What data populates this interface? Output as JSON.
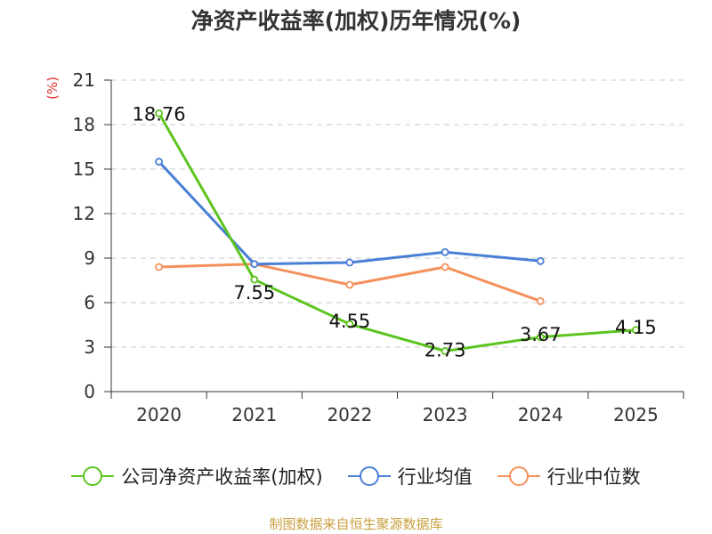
{
  "title": "净资产收益率(加权)历年情况(%)",
  "unit": "(%)",
  "source": "制图数据来自恒生聚源数据库",
  "chart_data": {
    "type": "line",
    "title": "净资产收益率(加权)历年情况(%)",
    "ylabel": "(%)",
    "xlabel": "",
    "categories": [
      "2020",
      "2021",
      "2022",
      "2023",
      "2024",
      "2025"
    ],
    "ylim": [
      0,
      21
    ],
    "yticks": [
      0,
      3,
      6,
      9,
      12,
      15,
      18,
      21
    ],
    "grid": true,
    "legend_position": "bottom",
    "series": [
      {
        "name": "公司净资产收益率(加权)",
        "color": "#5cc41f",
        "values": [
          18.76,
          7.55,
          4.55,
          2.73,
          3.67,
          4.15
        ],
        "labels": [
          "18.76",
          "7.55",
          "4.55",
          "2.73",
          "3.67",
          "4.15"
        ]
      },
      {
        "name": "行业均值",
        "color": "#4a7fd6",
        "values": [
          15.5,
          8.6,
          8.7,
          9.4,
          8.8,
          null
        ]
      },
      {
        "name": "行业中位数",
        "color": "#f4905a",
        "values": [
          8.4,
          8.6,
          7.2,
          8.4,
          6.1,
          null
        ]
      }
    ]
  }
}
